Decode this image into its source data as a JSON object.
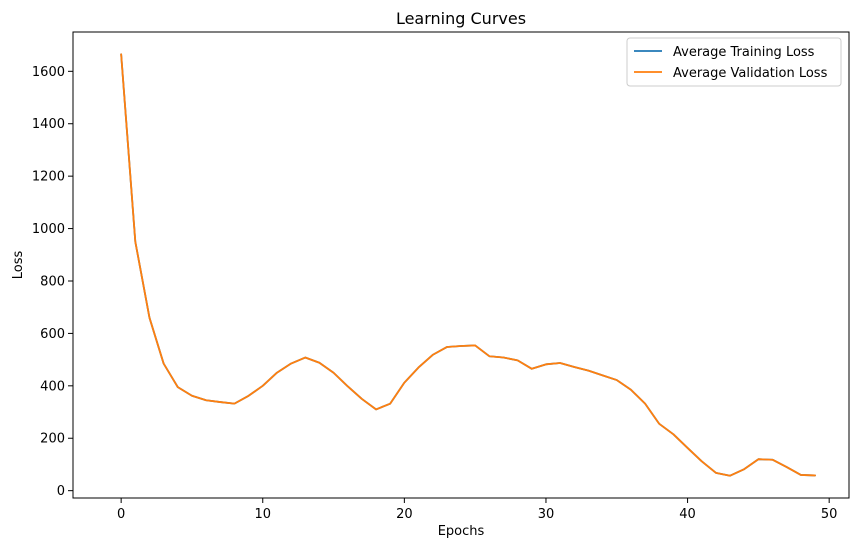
{
  "chart_data": {
    "type": "line",
    "title": "Learning Curves",
    "xlabel": "Epochs",
    "ylabel": "Loss",
    "xlim": [
      -3.4,
      51.4
    ],
    "ylim": [
      -28,
      1750
    ],
    "xticks": [
      0,
      10,
      20,
      30,
      40,
      50
    ],
    "yticks": [
      0,
      200,
      400,
      600,
      800,
      1000,
      1200,
      1400,
      1600
    ],
    "grid": false,
    "legend_position": "top-right",
    "x": [
      0,
      1,
      2,
      3,
      4,
      5,
      6,
      7,
      8,
      9,
      10,
      11,
      12,
      13,
      14,
      15,
      16,
      17,
      18,
      19,
      20,
      21,
      22,
      23,
      24,
      25,
      26,
      27,
      28,
      29,
      30,
      31,
      32,
      33,
      34,
      35,
      36,
      37,
      38,
      39,
      40,
      41,
      42,
      43,
      44,
      45,
      46,
      47,
      48,
      49
    ],
    "series": [
      {
        "name": "Average Training Loss",
        "color": "#1f77b4",
        "values": [
          1665,
          950,
          660,
          485,
          395,
          362,
          345,
          338,
          332,
          362,
          400,
          450,
          485,
          508,
          488,
          450,
          398,
          350,
          310,
          332,
          412,
          470,
          518,
          548,
          552,
          554,
          513,
          508,
          497,
          465,
          482,
          487,
          472,
          458,
          440,
          422,
          385,
          332,
          255,
          215,
          163,
          112,
          68,
          57,
          82,
          120,
          118,
          90,
          60,
          58
        ]
      },
      {
        "name": "Average Validation Loss",
        "color": "#ff7f0e",
        "values": [
          1665,
          950,
          660,
          485,
          395,
          362,
          345,
          338,
          332,
          362,
          400,
          450,
          485,
          508,
          488,
          450,
          398,
          350,
          310,
          332,
          412,
          470,
          518,
          548,
          552,
          554,
          513,
          508,
          497,
          465,
          482,
          487,
          472,
          458,
          440,
          422,
          385,
          332,
          255,
          215,
          163,
          112,
          68,
          57,
          82,
          120,
          118,
          90,
          60,
          58
        ]
      }
    ]
  }
}
